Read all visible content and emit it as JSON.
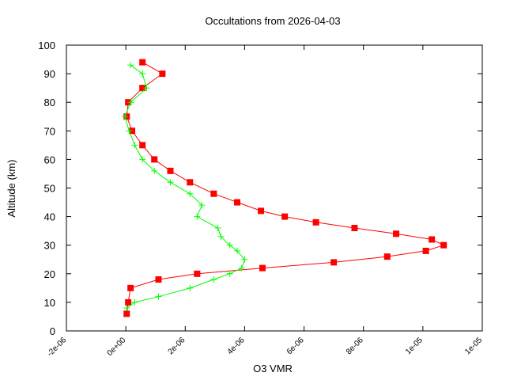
{
  "chart_data": {
    "type": "line",
    "title": "Occultations from 2026-04-03",
    "x_label": "O3 VMR",
    "y_label": "Altitude (km)",
    "xlim": [
      -2e-06,
      1.2e-05
    ],
    "xticks": [
      {
        "value": -2e-06,
        "label": "-2e-06"
      },
      {
        "value": 0,
        "label": "0e+00"
      },
      {
        "value": 2e-06,
        "label": "2e-06"
      },
      {
        "value": 4e-06,
        "label": "4e-06"
      },
      {
        "value": 6e-06,
        "label": "6e-06"
      },
      {
        "value": 8e-06,
        "label": "8e-06"
      },
      {
        "value": 1e-05,
        "label": "1e-05"
      },
      {
        "value": 1.2e-05,
        "label": "1e-05"
      }
    ],
    "ylim": [
      0,
      100
    ],
    "yticks": [
      0,
      10,
      20,
      30,
      40,
      50,
      60,
      70,
      80,
      90,
      100
    ],
    "series": [
      {
        "color": "#ff0000",
        "marker": "square",
        "x": [
          3e-08,
          8e-08,
          1.6e-07,
          1.1e-06,
          2.4e-06,
          4.6e-06,
          7e-06,
          8.8e-06,
          1.01e-05,
          1.07e-05,
          1.03e-05,
          9.1e-06,
          7.7e-06,
          6.4e-06,
          5.35e-06,
          4.55e-06,
          3.75e-06,
          2.96e-06,
          2.16e-06,
          1.5e-06,
          9.6e-07,
          5.6e-07,
          2.1e-07,
          3e-08,
          8e-08,
          5.6e-07,
          1.23e-06,
          5.6e-07
        ],
        "values": [
          6,
          10,
          15,
          18,
          20,
          22,
          24,
          26,
          28,
          30,
          32,
          34,
          36,
          38,
          40,
          42,
          45,
          48,
          52,
          56,
          60,
          65,
          70,
          75,
          80,
          85,
          90,
          94
        ]
      },
      {
        "color": "#00ff00",
        "marker": "plus",
        "x": [
          3e-08,
          3e-07,
          1.1e-06,
          2.16e-06,
          2.96e-06,
          3.5e-06,
          3.9e-06,
          4e-06,
          3.75e-06,
          3.5e-06,
          3.2e-06,
          3.1e-06,
          2.4e-06,
          2.56e-06,
          2.16e-06,
          1.5e-06,
          9.6e-07,
          5.6e-07,
          3e-07,
          1.1e-07,
          -3e-08,
          1.6e-07,
          7e-07,
          5.6e-07,
          1.6e-07
        ],
        "values": [
          8,
          10,
          12,
          15,
          18,
          20,
          22,
          25,
          28,
          30,
          33,
          36,
          40,
          44,
          48,
          52,
          56,
          60,
          65,
          70,
          75,
          80,
          85,
          90,
          93
        ]
      }
    ]
  }
}
